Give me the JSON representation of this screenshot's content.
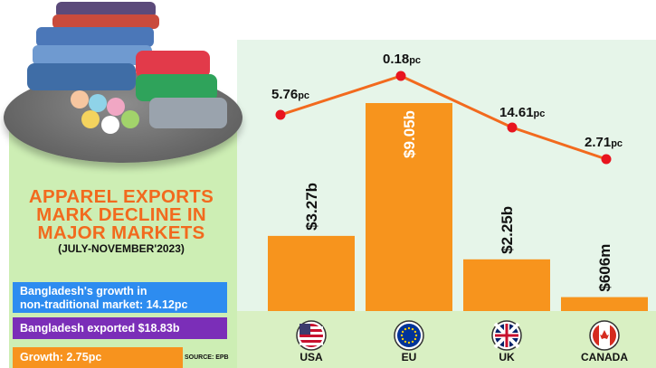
{
  "headline": [
    "APPAREL EXPORTS",
    "MARK DECLINE IN",
    "MAJOR MARKETS"
  ],
  "period": "(JULY-NOVEMBER'2023)",
  "info": {
    "growth_nontraditional_line1": "Bangladesh's growth in",
    "growth_nontraditional_line2": "non-traditional market: 14.12pc",
    "exported": "Bangladesh exported $18.83b",
    "growth": "Growth: 2.75pc"
  },
  "source": "SOURCE: EPB",
  "colors": {
    "bar": "#f7941d",
    "line": "#f26a1e",
    "marker": "#e8141e",
    "panel": "#e6f5e9",
    "left_panel": "#cdeeb4",
    "headline": "#f26a1e"
  },
  "chart_data": {
    "type": "bar",
    "categories": [
      "USA",
      "EU",
      "UK",
      "CANADA"
    ],
    "series": [
      {
        "values": [
          3.27,
          9.05,
          2.25,
          0.606
        ],
        "unit": "billion USD",
        "labels": [
          "$3.27b",
          "$9.05b",
          "$2.25b",
          "$606m"
        ]
      },
      {
        "type": "line",
        "values": [
          5.76,
          0.18,
          14.61,
          2.71
        ],
        "unit": "pc",
        "labels": [
          "5.76",
          "0.18",
          "14.61",
          "2.71"
        ]
      }
    ],
    "flags": [
      "usa-flag-icon",
      "eu-flag-icon",
      "uk-flag-icon",
      "canada-flag-icon"
    ]
  }
}
